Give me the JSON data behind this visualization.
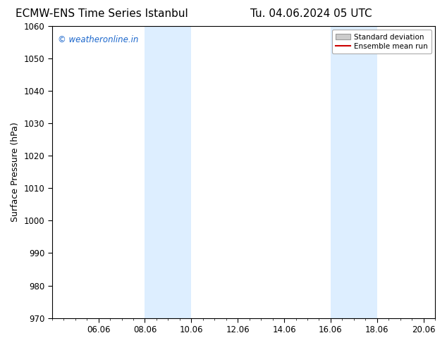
{
  "title_left": "ECMW-ENS Time Series Istanbul",
  "title_right": "Tu. 04.06.2024 05 UTC",
  "ylabel": "Surface Pressure (hPa)",
  "ylim": [
    970,
    1060
  ],
  "yticks": [
    970,
    980,
    990,
    1000,
    1010,
    1020,
    1030,
    1040,
    1050,
    1060
  ],
  "xtick_labels": [
    "06.06",
    "08.06",
    "10.06",
    "12.06",
    "14.06",
    "16.06",
    "18.06",
    "20.06"
  ],
  "xtick_positions": [
    2,
    4,
    6,
    8,
    10,
    12,
    14,
    16
  ],
  "xlim": [
    0,
    16.5
  ],
  "shade_bands": [
    {
      "x_start": 4,
      "x_end": 6
    },
    {
      "x_start": 12,
      "x_end": 14
    }
  ],
  "shade_color": "#ddeeff",
  "background_color": "#ffffff",
  "std_dev_color": "#cccccc",
  "mean_line_color": "#cc0000",
  "watermark_text": "© weatheronline.in",
  "watermark_color": "#1a66cc",
  "legend_std_label": "Standard deviation",
  "legend_mean_label": "Ensemble mean run",
  "title_fontsize": 11,
  "axis_label_fontsize": 9,
  "tick_fontsize": 8.5,
  "spine_color": "#000000"
}
